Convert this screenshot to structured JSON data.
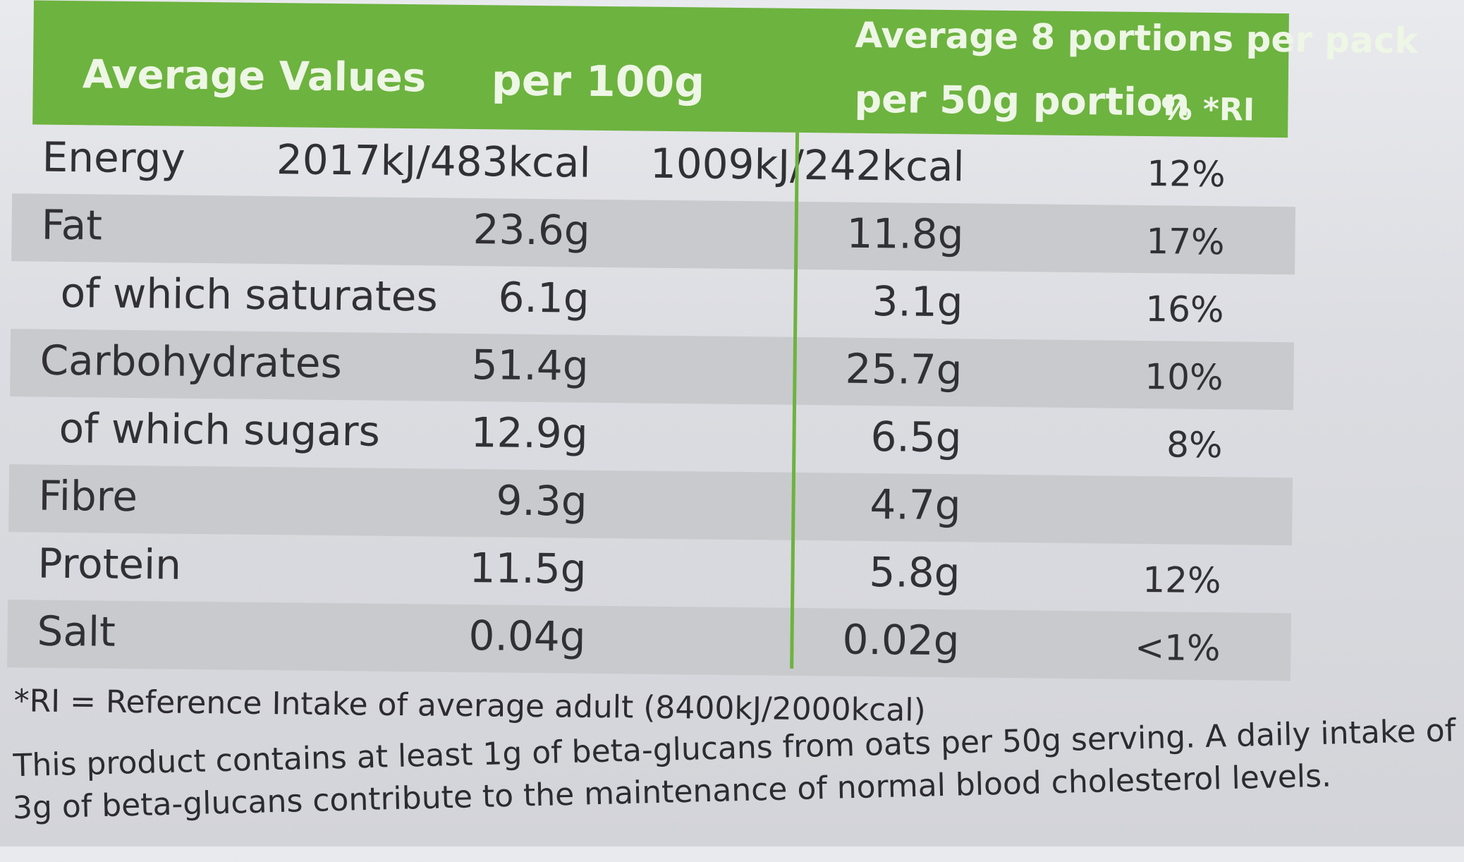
{
  "header": {
    "average_values": "Average Values",
    "per_100g": "per 100g",
    "portions_per_pack": "Average 8 portions per pack",
    "per_portion": "per 50g portion",
    "ri_heading": "% *RI"
  },
  "rows": [
    {
      "name": "Energy",
      "per100": "2017kJ/483kcal",
      "portion": "1009kJ/242kcal",
      "ri": "12%"
    },
    {
      "name": "Fat",
      "per100": "23.6g",
      "portion": "11.8g",
      "ri": "17%"
    },
    {
      "name": "of which saturates",
      "per100": "6.1g",
      "portion": "3.1g",
      "ri": "16%"
    },
    {
      "name": "Carbohydrates",
      "per100": "51.4g",
      "portion": "25.7g",
      "ri": "10%"
    },
    {
      "name": "of which sugars",
      "per100": "12.9g",
      "portion": "6.5g",
      "ri": "8%"
    },
    {
      "name": "Fibre",
      "per100": "9.3g",
      "portion": "4.7g",
      "ri": ""
    },
    {
      "name": "Protein",
      "per100": "11.5g",
      "portion": "5.8g",
      "ri": "12%"
    },
    {
      "name": "Salt",
      "per100": "0.04g",
      "portion": "0.02g",
      "ri": "<1%"
    }
  ],
  "footnotes": {
    "ri_definition": "*RI = Reference Intake of average adult (8400kJ/2000kcal)",
    "claim_line1": "This product contains at least 1g of beta-glucans from oats per 50g serving. A daily intake of",
    "claim_line2": "3g of beta-glucans contribute to the maintenance of normal blood cholesterol levels."
  },
  "colors": {
    "header_green": "#6db33f",
    "row_shade": "#c9cacd"
  }
}
